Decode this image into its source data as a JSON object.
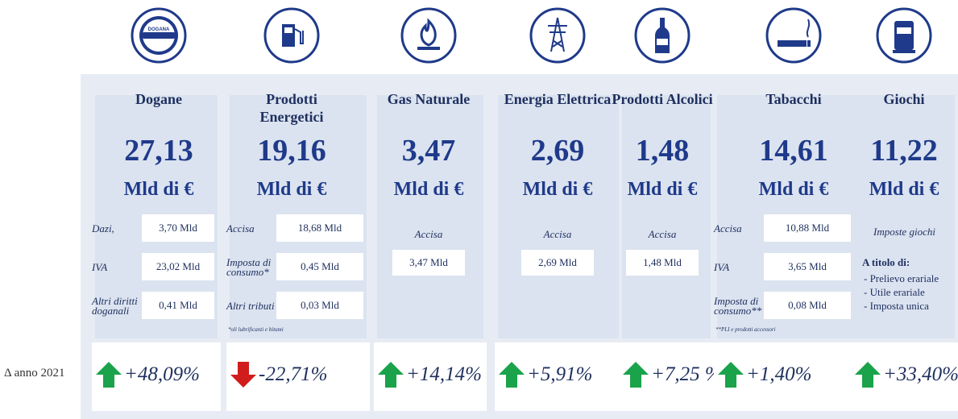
{
  "side_label": "Δ anno 2021",
  "columns": [
    {
      "name": "Dogane",
      "icon_text": [
        "DOGANA",
        "DOUANE"
      ],
      "value": "27,13",
      "unit": "Mld di €",
      "items": [
        {
          "label": "Dazi,",
          "value": "3,70 Mld"
        },
        {
          "label": "IVA",
          "value": "23,02 Mld"
        },
        {
          "label": "Altri diritti doganali",
          "value": "0,41 Mld"
        }
      ],
      "change": "+48,09%",
      "trend": "up"
    },
    {
      "name": "Prodotti Energetici",
      "value": "19,16",
      "unit": "Mld di €",
      "items": [
        {
          "label": "Accisa",
          "value": "18,68 Mld"
        },
        {
          "label": "Imposta di consumo*",
          "value": "0,45 Mld"
        },
        {
          "label": "Altri tributi",
          "value": "0,03 Mld"
        }
      ],
      "note": "*oli lubrificanti e bitumi",
      "change": "-22,71%",
      "trend": "down"
    },
    {
      "name": "Gas Naturale",
      "value": "3,47",
      "unit": "Mld di €",
      "items": [
        {
          "label": "Accisa",
          "value": "3,47 Mld"
        }
      ],
      "change": "+14,14%",
      "trend": "up"
    },
    {
      "name": "Energia Elettrica",
      "value": "2,69",
      "unit": "Mld di €",
      "items": [
        {
          "label": "Accisa",
          "value": "2,69 Mld"
        }
      ],
      "change": "+5,91%",
      "trend": "up"
    },
    {
      "name": "Prodotti Alcolici",
      "value": "1,48",
      "unit": "Mld di €",
      "items": [
        {
          "label": "Accisa",
          "value": "1,48 Mld"
        }
      ],
      "change": "+7,25 %",
      "trend": "up"
    },
    {
      "name": "Tabacchi",
      "value": "14,61",
      "unit": "Mld di €",
      "items": [
        {
          "label": "Accisa",
          "value": "10,88 Mld"
        },
        {
          "label": "IVA",
          "value": "3,65 Mld"
        },
        {
          "label": "Imposta di consumo**",
          "value": "0,08 Mld"
        }
      ],
      "note": "**PLI e prodotti accessori",
      "change": "+1,40%",
      "trend": "up"
    },
    {
      "name": "Giochi",
      "value": "11,22",
      "unit": "Mld di €",
      "items": [],
      "label": "Imposte giochi",
      "list_title": "A titolo di:",
      "list": [
        "- Prelievo erariale",
        "- Utile erariale",
        "- Imposta unica"
      ],
      "change": "+33,40%",
      "trend": "up"
    }
  ]
}
